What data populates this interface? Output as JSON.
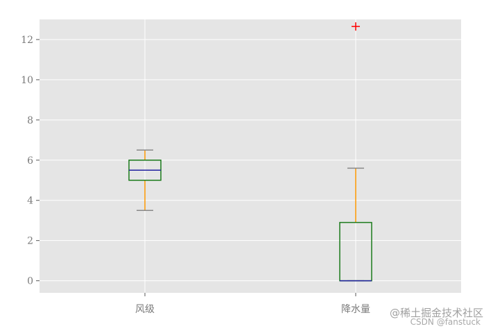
{
  "chart_data": {
    "type": "boxplot",
    "title": "",
    "xlabel": "",
    "ylabel": "",
    "ylim": [
      -0.6,
      13.0
    ],
    "yticks": [
      0,
      2,
      4,
      6,
      8,
      10,
      12
    ],
    "grid": true,
    "categories": [
      "风级",
      "降水量"
    ],
    "boxes": [
      {
        "category": "风级",
        "whisker_low": 3.5,
        "q1": 5.0,
        "median": 5.5,
        "q3": 6.0,
        "whisker_high": 6.5,
        "outliers": []
      },
      {
        "category": "降水量",
        "whisker_low": 0.0,
        "q1": 0.0,
        "median": 0.0,
        "q3": 2.9,
        "whisker_high": 5.6,
        "outliers": [
          12.65
        ]
      }
    ],
    "colors": {
      "background": "#e5e5e5",
      "grid": "#ffffff",
      "box": "#1a7a1a",
      "median": "#2020a0",
      "whisker": "#ff9900",
      "cap": "#888888",
      "flier": "#ff0000"
    }
  },
  "watermark": {
    "line1": "@稀土掘金技术社区",
    "line2": "CSDN @fanstuck"
  }
}
